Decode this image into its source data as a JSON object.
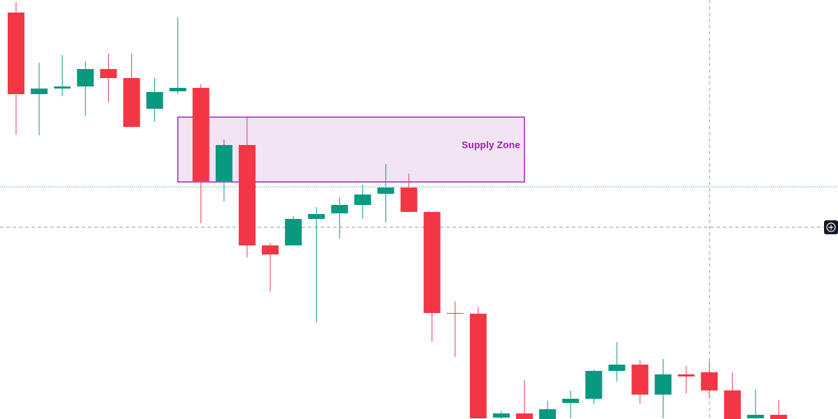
{
  "chart_data": {
    "type": "candlestick",
    "ylim": [
      0,
      601
    ],
    "up_color": "#089981",
    "down_color": "#f23645",
    "open": [
      583,
      466,
      474,
      477,
      502,
      489,
      445,
      470,
      475,
      341,
      393,
      249,
      249,
      287,
      295,
      307,
      323,
      332,
      297,
      152,
      151,
      2,
      8,
      0,
      23,
      29,
      69,
      78,
      35,
      64,
      67,
      41,
      1,
      6
    ],
    "high": [
      598,
      511,
      522,
      513,
      524,
      524,
      489,
      576,
      480,
      401,
      434,
      252,
      291,
      304,
      318,
      336,
      366,
      352,
      297,
      169,
      161,
      11,
      56,
      26,
      41,
      71,
      110,
      84,
      86,
      76,
      83,
      67,
      42,
      27
    ],
    "low": [
      408,
      407,
      463,
      435,
      454,
      418,
      427,
      466,
      281,
      312,
      232,
      183,
      249,
      139,
      259,
      287,
      282,
      297,
      111,
      89,
      1,
      0,
      0,
      0,
      1,
      21,
      54,
      22,
      1,
      37,
      31,
      0,
      0,
      0
    ],
    "close": [
      466,
      474,
      477,
      502,
      489,
      419,
      469,
      475,
      341,
      393,
      249,
      236,
      287,
      294,
      307,
      322,
      332,
      297,
      152,
      151,
      1,
      8,
      0,
      14,
      29,
      69,
      78,
      35,
      64,
      61,
      41,
      0,
      6,
      0
    ],
    "zone": {
      "label": "Supply Zone",
      "low": 340,
      "high": 433,
      "x_range": [
        7,
        22
      ],
      "color": "#9c27b0"
    },
    "price_line": 333
  }
}
